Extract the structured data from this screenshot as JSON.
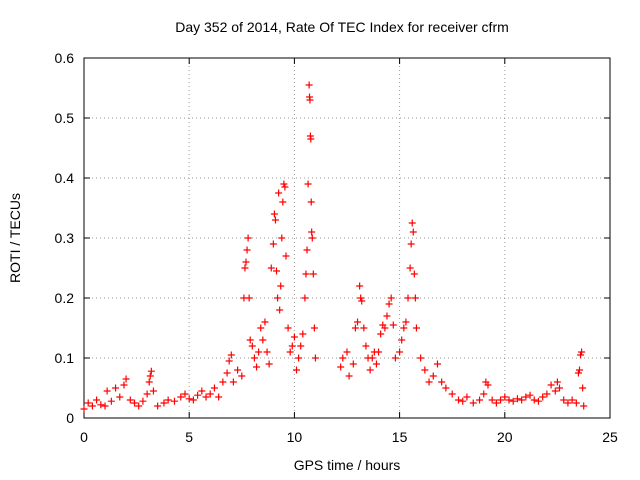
{
  "chart_data": {
    "type": "scatter",
    "title": "Day 352 of 2014, Rate Of TEC Index for receiver cfrm",
    "xlabel": "GPS time / hours",
    "ylabel": "ROTI / TECUs",
    "xlim": [
      0,
      25
    ],
    "ylim": [
      0,
      0.6
    ],
    "x_ticks": [
      {
        "value": 0,
        "label": "0"
      },
      {
        "value": 5,
        "label": "5"
      },
      {
        "value": 10,
        "label": "10"
      },
      {
        "value": 15,
        "label": "15"
      },
      {
        "value": 20,
        "label": "20"
      },
      {
        "value": 25,
        "label": "25"
      }
    ],
    "y_ticks": [
      {
        "value": 0,
        "label": "0"
      },
      {
        "value": 0.1,
        "label": "0.1"
      },
      {
        "value": 0.2,
        "label": "0.2"
      },
      {
        "value": 0.3,
        "label": "0.3"
      },
      {
        "value": 0.4,
        "label": "0.4"
      },
      {
        "value": 0.5,
        "label": "0.5"
      },
      {
        "value": 0.6,
        "label": "0.6"
      }
    ],
    "grid": true,
    "marker": "+",
    "color": "#ff0000",
    "series": [
      {
        "points": [
          [
            0.0,
            0.015
          ],
          [
            0.2,
            0.025
          ],
          [
            0.4,
            0.02
          ],
          [
            0.6,
            0.03
          ],
          [
            0.8,
            0.022
          ],
          [
            1.0,
            0.02
          ],
          [
            1.1,
            0.045
          ],
          [
            1.3,
            0.028
          ],
          [
            1.5,
            0.05
          ],
          [
            1.7,
            0.035
          ],
          [
            1.9,
            0.055
          ],
          [
            2.0,
            0.065
          ],
          [
            2.2,
            0.03
          ],
          [
            2.4,
            0.025
          ],
          [
            2.6,
            0.02
          ],
          [
            2.8,
            0.028
          ],
          [
            3.0,
            0.04
          ],
          [
            3.1,
            0.06
          ],
          [
            3.15,
            0.07
          ],
          [
            3.2,
            0.078
          ],
          [
            3.3,
            0.045
          ],
          [
            3.5,
            0.02
          ],
          [
            3.8,
            0.025
          ],
          [
            4.0,
            0.03
          ],
          [
            4.3,
            0.028
          ],
          [
            4.6,
            0.035
          ],
          [
            4.8,
            0.04
          ],
          [
            5.0,
            0.032
          ],
          [
            5.2,
            0.03
          ],
          [
            5.4,
            0.038
          ],
          [
            5.6,
            0.045
          ],
          [
            5.8,
            0.035
          ],
          [
            6.0,
            0.04
          ],
          [
            6.2,
            0.05
          ],
          [
            6.4,
            0.035
          ],
          [
            6.6,
            0.06
          ],
          [
            6.8,
            0.075
          ],
          [
            6.9,
            0.095
          ],
          [
            7.0,
            0.105
          ],
          [
            7.1,
            0.06
          ],
          [
            7.3,
            0.08
          ],
          [
            7.5,
            0.07
          ],
          [
            7.6,
            0.2
          ],
          [
            7.65,
            0.25
          ],
          [
            7.7,
            0.26
          ],
          [
            7.75,
            0.28
          ],
          [
            7.8,
            0.3
          ],
          [
            7.85,
            0.2
          ],
          [
            7.9,
            0.13
          ],
          [
            8.0,
            0.12
          ],
          [
            8.1,
            0.1
          ],
          [
            8.2,
            0.085
          ],
          [
            8.3,
            0.11
          ],
          [
            8.4,
            0.15
          ],
          [
            8.5,
            0.13
          ],
          [
            8.6,
            0.16
          ],
          [
            8.7,
            0.11
          ],
          [
            8.8,
            0.09
          ],
          [
            8.9,
            0.25
          ],
          [
            9.0,
            0.29
          ],
          [
            9.05,
            0.34
          ],
          [
            9.1,
            0.33
          ],
          [
            9.15,
            0.245
          ],
          [
            9.2,
            0.2
          ],
          [
            9.25,
            0.375
          ],
          [
            9.3,
            0.18
          ],
          [
            9.35,
            0.22
          ],
          [
            9.4,
            0.3
          ],
          [
            9.45,
            0.36
          ],
          [
            9.5,
            0.39
          ],
          [
            9.55,
            0.385
          ],
          [
            9.6,
            0.27
          ],
          [
            9.7,
            0.15
          ],
          [
            9.8,
            0.11
          ],
          [
            9.9,
            0.12
          ],
          [
            10.0,
            0.135
          ],
          [
            10.1,
            0.08
          ],
          [
            10.2,
            0.1
          ],
          [
            10.3,
            0.12
          ],
          [
            10.4,
            0.14
          ],
          [
            10.5,
            0.2
          ],
          [
            10.55,
            0.24
          ],
          [
            10.6,
            0.28
          ],
          [
            10.65,
            0.39
          ],
          [
            10.7,
            0.555
          ],
          [
            10.72,
            0.535
          ],
          [
            10.74,
            0.53
          ],
          [
            10.76,
            0.47
          ],
          [
            10.78,
            0.465
          ],
          [
            10.8,
            0.36
          ],
          [
            10.82,
            0.31
          ],
          [
            10.85,
            0.3
          ],
          [
            10.9,
            0.24
          ],
          [
            10.95,
            0.15
          ],
          [
            11.0,
            0.1
          ],
          [
            12.2,
            0.085
          ],
          [
            12.3,
            0.1
          ],
          [
            12.5,
            0.11
          ],
          [
            12.6,
            0.07
          ],
          [
            12.8,
            0.09
          ],
          [
            12.9,
            0.15
          ],
          [
            13.0,
            0.16
          ],
          [
            13.1,
            0.22
          ],
          [
            13.15,
            0.2
          ],
          [
            13.2,
            0.195
          ],
          [
            13.3,
            0.15
          ],
          [
            13.4,
            0.12
          ],
          [
            13.5,
            0.1
          ],
          [
            13.6,
            0.08
          ],
          [
            13.7,
            0.1
          ],
          [
            13.8,
            0.11
          ],
          [
            13.9,
            0.09
          ],
          [
            14.0,
            0.11
          ],
          [
            14.1,
            0.14
          ],
          [
            14.2,
            0.155
          ],
          [
            14.3,
            0.15
          ],
          [
            14.4,
            0.17
          ],
          [
            14.5,
            0.19
          ],
          [
            14.6,
            0.2
          ],
          [
            14.7,
            0.155
          ],
          [
            14.8,
            0.1
          ],
          [
            15.0,
            0.11
          ],
          [
            15.1,
            0.13
          ],
          [
            15.2,
            0.15
          ],
          [
            15.3,
            0.16
          ],
          [
            15.4,
            0.2
          ],
          [
            15.5,
            0.25
          ],
          [
            15.55,
            0.29
          ],
          [
            15.6,
            0.325
          ],
          [
            15.65,
            0.31
          ],
          [
            15.7,
            0.24
          ],
          [
            15.75,
            0.2
          ],
          [
            15.8,
            0.15
          ],
          [
            16.0,
            0.1
          ],
          [
            16.2,
            0.08
          ],
          [
            16.4,
            0.06
          ],
          [
            16.6,
            0.07
          ],
          [
            16.8,
            0.09
          ],
          [
            17.0,
            0.06
          ],
          [
            17.2,
            0.05
          ],
          [
            17.5,
            0.04
          ],
          [
            17.8,
            0.03
          ],
          [
            18.0,
            0.028
          ],
          [
            18.2,
            0.035
          ],
          [
            18.5,
            0.025
          ],
          [
            18.8,
            0.03
          ],
          [
            19.0,
            0.04
          ],
          [
            19.1,
            0.06
          ],
          [
            19.2,
            0.055
          ],
          [
            19.4,
            0.03
          ],
          [
            19.6,
            0.025
          ],
          [
            19.8,
            0.03
          ],
          [
            20.0,
            0.035
          ],
          [
            20.2,
            0.03
          ],
          [
            20.4,
            0.028
          ],
          [
            20.6,
            0.032
          ],
          [
            20.8,
            0.03
          ],
          [
            21.0,
            0.035
          ],
          [
            21.2,
            0.038
          ],
          [
            21.4,
            0.03
          ],
          [
            21.6,
            0.028
          ],
          [
            21.8,
            0.035
          ],
          [
            22.0,
            0.04
          ],
          [
            22.2,
            0.055
          ],
          [
            22.4,
            0.045
          ],
          [
            22.5,
            0.06
          ],
          [
            22.6,
            0.05
          ],
          [
            22.8,
            0.03
          ],
          [
            23.0,
            0.025
          ],
          [
            23.2,
            0.03
          ],
          [
            23.4,
            0.025
          ],
          [
            23.5,
            0.075
          ],
          [
            23.55,
            0.08
          ],
          [
            23.6,
            0.105
          ],
          [
            23.65,
            0.11
          ],
          [
            23.7,
            0.05
          ],
          [
            23.75,
            0.02
          ]
        ]
      }
    ]
  }
}
